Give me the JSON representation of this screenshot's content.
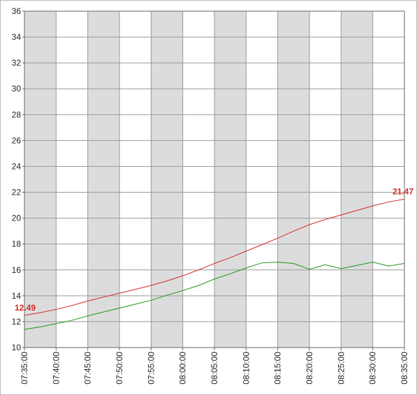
{
  "chart_data": {
    "type": "line",
    "x": [
      "07:35:00",
      "07:37:30",
      "07:40:00",
      "07:42:30",
      "07:45:00",
      "07:47:30",
      "07:50:00",
      "07:52:30",
      "07:55:00",
      "07:57:30",
      "08:00:00",
      "08:02:30",
      "08:05:00",
      "08:07:30",
      "08:10:00",
      "08:12:30",
      "08:15:00",
      "08:17:30",
      "08:20:00",
      "08:22:30",
      "08:25:00",
      "08:27:30",
      "08:30:00",
      "08:32:30",
      "08:35:00"
    ],
    "series": [
      {
        "color": "#d42a2a",
        "values": [
          12.49,
          12.7,
          12.95,
          13.25,
          13.6,
          13.9,
          14.2,
          14.5,
          14.8,
          15.15,
          15.55,
          16.0,
          16.5,
          16.95,
          17.45,
          17.95,
          18.45,
          19.0,
          19.5,
          19.9,
          20.25,
          20.6,
          20.95,
          21.25,
          21.47
        ]
      },
      {
        "color": "#1a961a",
        "values": [
          11.4,
          11.6,
          11.85,
          12.1,
          12.45,
          12.75,
          13.05,
          13.35,
          13.65,
          14.05,
          14.4,
          14.8,
          15.3,
          15.7,
          16.15,
          16.55,
          16.6,
          16.5,
          16.05,
          16.4,
          16.1,
          16.35,
          16.6,
          16.3,
          16.5
        ]
      }
    ],
    "xlim": [
      "07:35:00",
      "08:35:00"
    ],
    "xticks": [
      "07:35:00",
      "07:40:00",
      "07:45:00",
      "07:50:00",
      "07:55:00",
      "08:00:00",
      "08:05:00",
      "08:10:00",
      "08:15:00",
      "08:20:00",
      "08:25:00",
      "08:30:00",
      "08:35:00"
    ],
    "ylim": [
      10,
      36
    ],
    "yticks": [
      10,
      12,
      14,
      16,
      18,
      20,
      22,
      24,
      26,
      28,
      30,
      32,
      34,
      36
    ],
    "grid": true,
    "alternate_bands": true
  }
}
